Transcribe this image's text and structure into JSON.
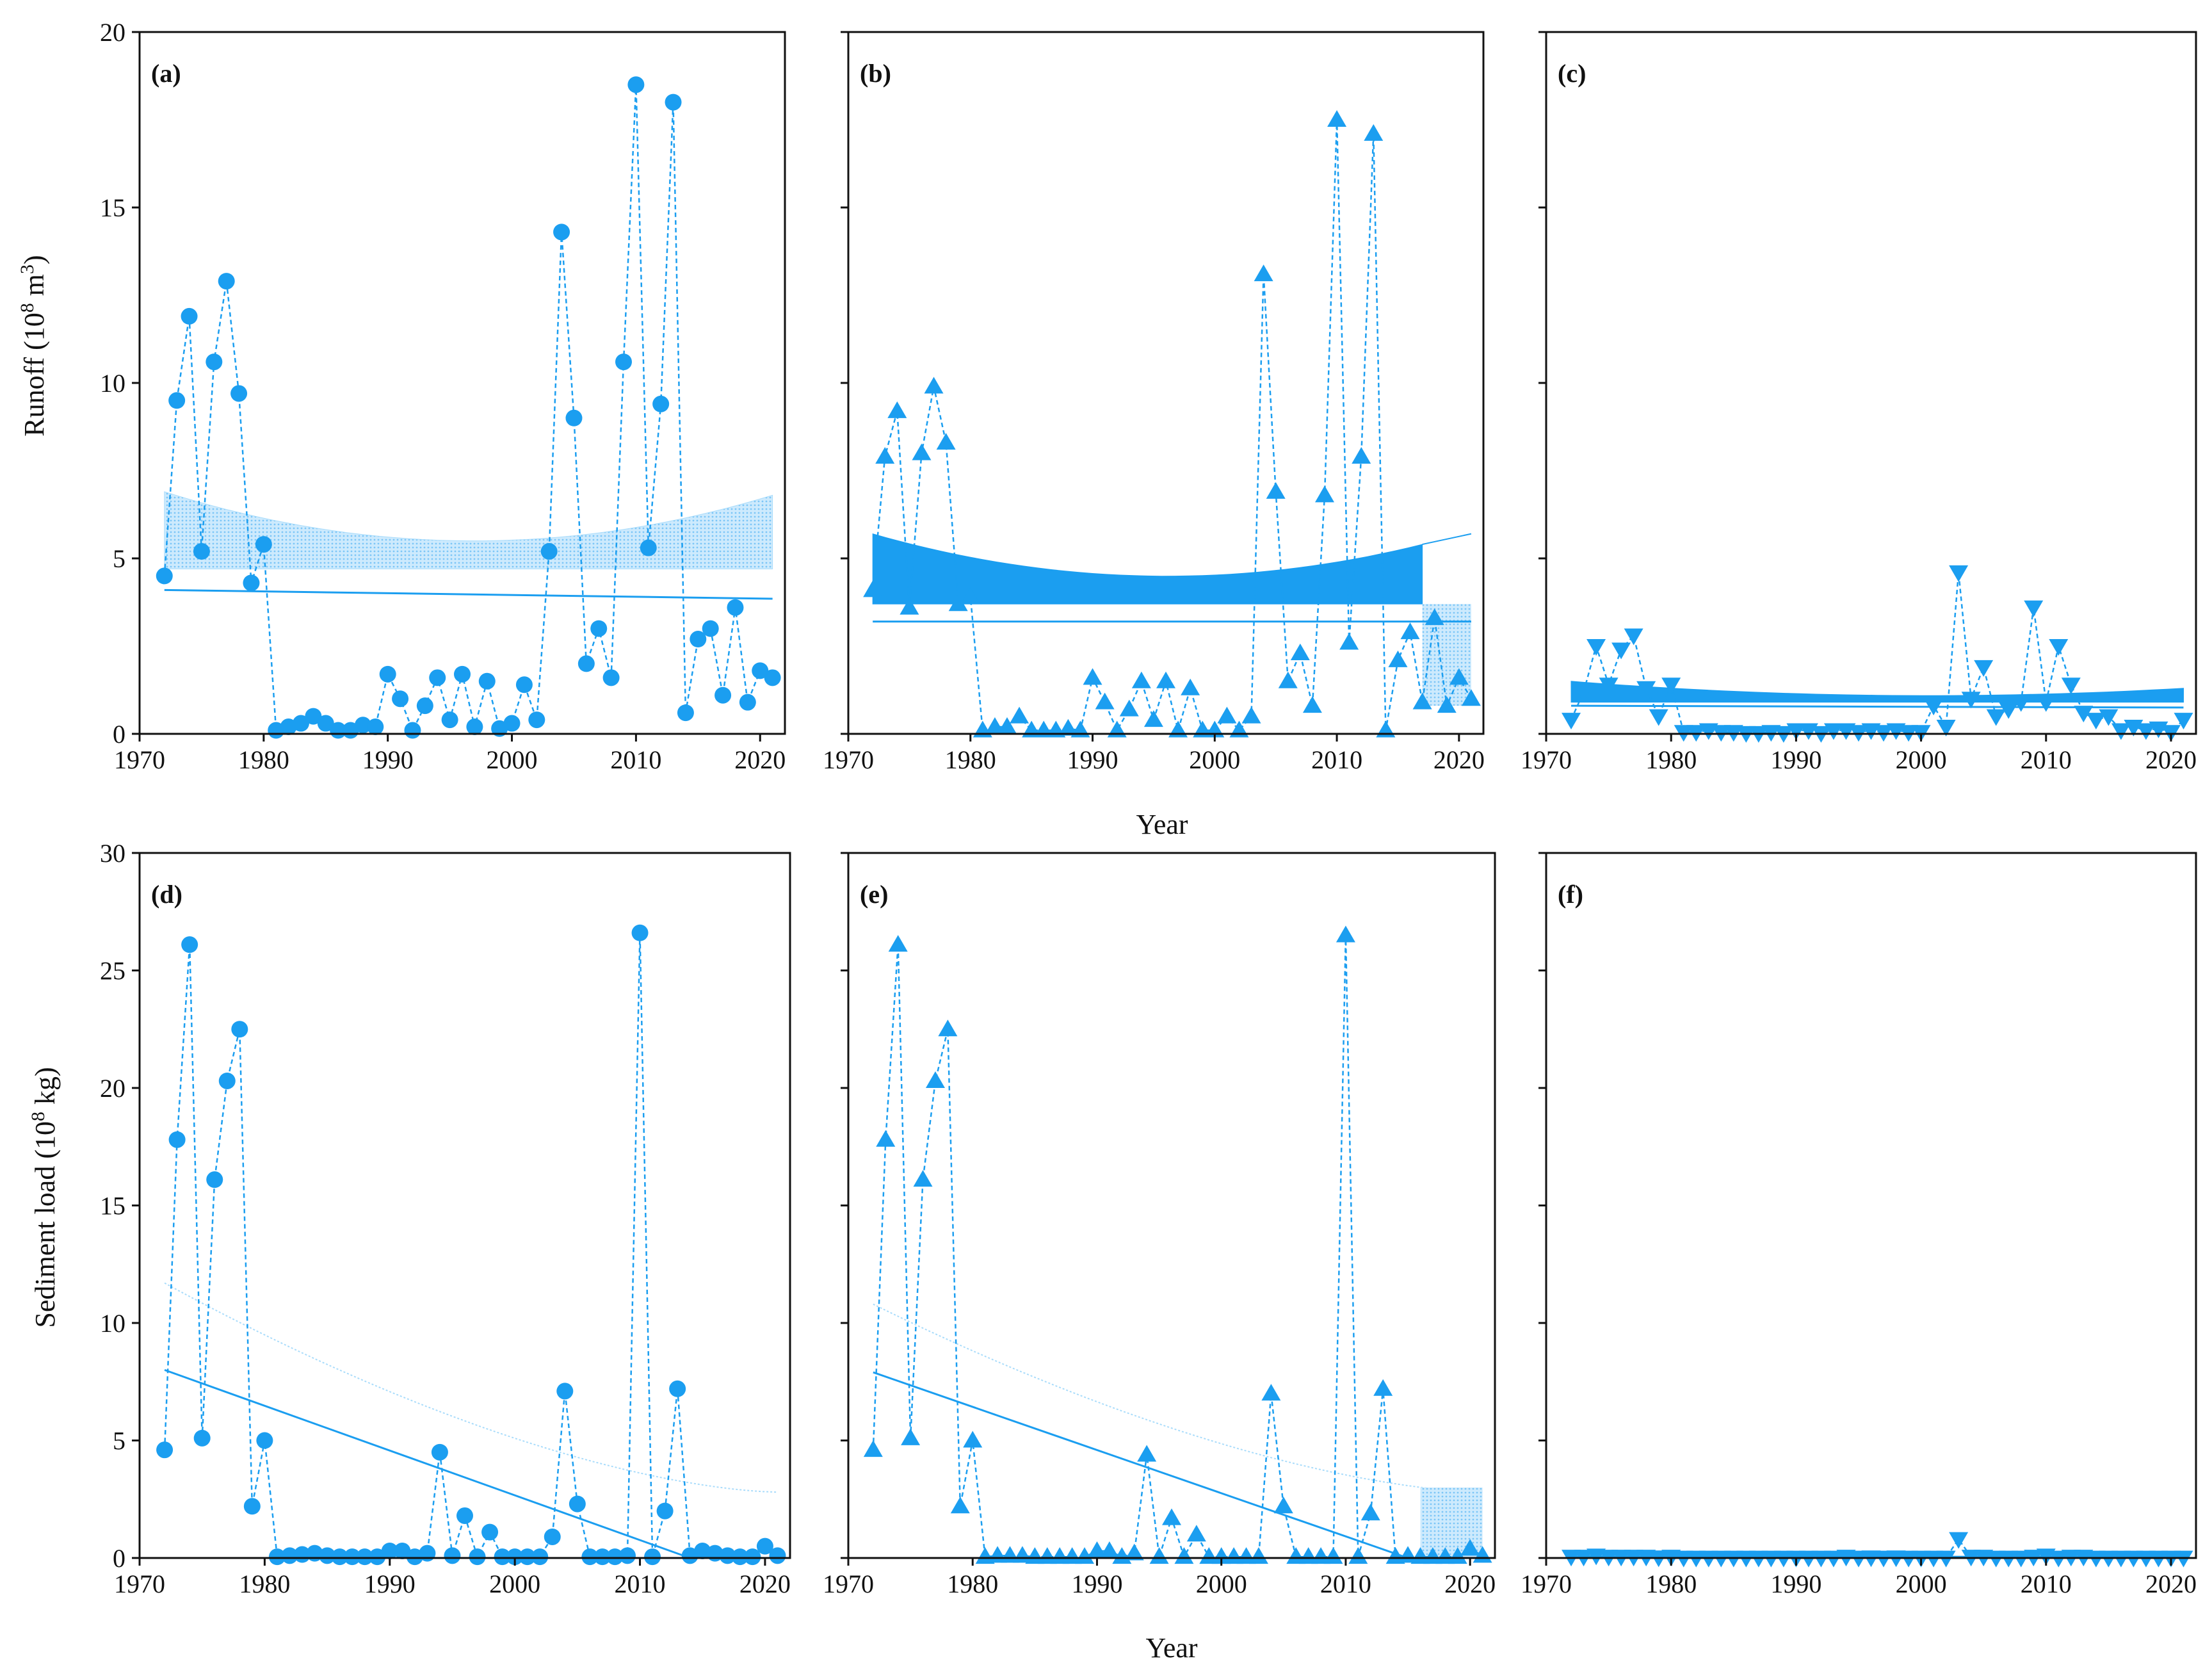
{
  "colors": {
    "series": "#1b9ef0",
    "band": "#a9dcfb",
    "axis": "#111111"
  },
  "shared": {
    "x_label": "Year",
    "x_ticks": [
      1970,
      1980,
      1990,
      2000,
      2010,
      2020
    ],
    "top_y_label": "Runoff (10",
    "top_y_label_exp": "8",
    "top_y_label_unit": " m",
    "top_y_label_unit_exp": "3",
    "top_y_label_close": ")",
    "bottom_y_label": "Sediment load (10",
    "bottom_y_label_exp": "8",
    "bottom_y_label_close": " kg)",
    "top_y_ticks": [
      0,
      5,
      10,
      15,
      20
    ],
    "bottom_y_ticks": [
      0,
      5,
      10,
      15,
      20,
      25,
      30
    ]
  },
  "chart_data": [
    {
      "panel": "(a)",
      "type": "line",
      "marker": "circle",
      "xlim": [
        1970,
        2022
      ],
      "ylim": [
        0,
        20
      ],
      "x": [
        1972,
        1973,
        1974,
        1975,
        1976,
        1977,
        1978,
        1979,
        1980,
        1981,
        1982,
        1983,
        1984,
        1985,
        1986,
        1987,
        1988,
        1989,
        1990,
        1991,
        1992,
        1993,
        1994,
        1995,
        1996,
        1997,
        1998,
        1999,
        2000,
        2001,
        2002,
        2003,
        2004,
        2005,
        2006,
        2007,
        2008,
        2009,
        2010,
        2011,
        2012,
        2013,
        2014,
        2015,
        2016,
        2017,
        2018,
        2019,
        2020,
        2021
      ],
      "values": [
        4.5,
        9.5,
        11.9,
        5.2,
        10.6,
        12.9,
        9.7,
        4.3,
        5.4,
        0.1,
        0.2,
        0.3,
        0.5,
        0.3,
        0.1,
        0.1,
        0.25,
        0.2,
        1.7,
        1.0,
        0.1,
        0.8,
        1.6,
        0.4,
        1.7,
        0.2,
        1.5,
        0.15,
        0.3,
        1.4,
        0.4,
        5.2,
        14.3,
        9.0,
        2.0,
        3.0,
        1.6,
        10.6,
        18.5,
        5.3,
        9.4,
        18.0,
        0.6,
        2.7,
        3.0,
        1.1,
        3.6,
        0.9,
        1.8,
        1.6
      ],
      "trend": {
        "from": [
          1972,
          4.1
        ],
        "to": [
          2021,
          3.85
        ]
      },
      "band": {
        "x_range": [
          1972,
          2021
        ],
        "lower": 4.7,
        "upper": [
          6.9,
          5.5,
          6.8
        ],
        "style": "light"
      }
    },
    {
      "panel": "(b)",
      "type": "line",
      "marker": "triangle-up",
      "xlim": [
        1970,
        2022
      ],
      "ylim": [
        0,
        20
      ],
      "x": [
        1972,
        1973,
        1974,
        1975,
        1976,
        1977,
        1978,
        1979,
        1980,
        1981,
        1982,
        1983,
        1984,
        1985,
        1986,
        1987,
        1988,
        1989,
        1990,
        1991,
        1992,
        1993,
        1994,
        1995,
        1996,
        1997,
        1998,
        1999,
        2000,
        2001,
        2002,
        2003,
        2004,
        2005,
        2006,
        2007,
        2008,
        2009,
        2010,
        2011,
        2012,
        2013,
        2014,
        2015,
        2016,
        2017,
        2018,
        2019,
        2020,
        2021
      ],
      "values": [
        4.1,
        7.9,
        9.2,
        3.6,
        8.0,
        9.9,
        8.3,
        3.7,
        3.9,
        0.1,
        0.2,
        0.2,
        0.5,
        0.1,
        0.1,
        0.1,
        0.15,
        0.1,
        1.6,
        0.9,
        0.1,
        0.7,
        1.5,
        0.4,
        1.5,
        0.1,
        1.3,
        0.1,
        0.1,
        0.5,
        0.1,
        0.5,
        13.1,
        6.9,
        1.5,
        2.3,
        0.8,
        6.8,
        17.5,
        2.6,
        7.9,
        17.1,
        0.1,
        2.1,
        2.9,
        0.9,
        3.3,
        0.8,
        1.6,
        1.0
      ],
      "trend": {
        "from": [
          1972,
          3.2
        ],
        "to": [
          2021,
          3.2
        ]
      },
      "band": {
        "x_range": [
          1972,
          2017
        ],
        "lower": 3.7,
        "upper": [
          5.7,
          4.5,
          5.4
        ],
        "style": "solid",
        "thin_extension_to": [
          2021,
          5.7
        ],
        "light_patch": {
          "x_range": [
            2017,
            2021
          ],
          "lower": 0.8,
          "upper": 3.7
        }
      }
    },
    {
      "panel": "(c)",
      "type": "line",
      "marker": "triangle-down",
      "xlim": [
        1970,
        2022
      ],
      "ylim": [
        0,
        20
      ],
      "x": [
        1972,
        1973,
        1974,
        1975,
        1976,
        1977,
        1978,
        1979,
        1980,
        1981,
        1982,
        1983,
        1984,
        1985,
        1986,
        1987,
        1988,
        1989,
        1990,
        1991,
        1992,
        1993,
        1994,
        1995,
        1996,
        1997,
        1998,
        1999,
        2000,
        2001,
        2002,
        2003,
        2004,
        2005,
        2006,
        2007,
        2008,
        2009,
        2010,
        2011,
        2012,
        2013,
        2014,
        2015,
        2016,
        2017,
        2018,
        2019,
        2020,
        2021
      ],
      "values": [
        0.4,
        1.2,
        2.5,
        1.4,
        2.4,
        2.8,
        1.3,
        0.5,
        1.4,
        0.05,
        0.05,
        0.1,
        0.05,
        0.05,
        0.02,
        0.02,
        0.05,
        0.02,
        0.1,
        0.1,
        0.02,
        0.1,
        0.1,
        0.05,
        0.1,
        0.05,
        0.1,
        0.05,
        0.05,
        0.8,
        0.2,
        4.6,
        1.0,
        1.9,
        0.5,
        0.7,
        0.9,
        3.6,
        0.9,
        2.5,
        1.4,
        0.6,
        0.4,
        0.5,
        0.1,
        0.2,
        0.1,
        0.15,
        0.05,
        0.4
      ],
      "trend": {
        "from": [
          1972,
          0.8
        ],
        "to": [
          2021,
          0.75
        ]
      },
      "band": {
        "x_range": [
          1972,
          2021
        ],
        "lower": 0.9,
        "upper": [
          1.5,
          1.1,
          1.3
        ],
        "style": "solid"
      }
    },
    {
      "panel": "(d)",
      "type": "line",
      "marker": "circle",
      "xlim": [
        1970,
        2022
      ],
      "ylim": [
        0,
        30
      ],
      "x": [
        1972,
        1973,
        1974,
        1975,
        1976,
        1977,
        1978,
        1979,
        1980,
        1981,
        1982,
        1983,
        1984,
        1985,
        1986,
        1987,
        1988,
        1989,
        1990,
        1991,
        1992,
        1993,
        1994,
        1995,
        1996,
        1997,
        1998,
        1999,
        2000,
        2001,
        2002,
        2003,
        2004,
        2005,
        2006,
        2007,
        2008,
        2009,
        2010,
        2011,
        2012,
        2013,
        2014,
        2015,
        2016,
        2017,
        2018,
        2019,
        2020,
        2021
      ],
      "values": [
        4.6,
        17.8,
        26.1,
        5.1,
        16.1,
        20.3,
        22.5,
        2.2,
        5.0,
        0.05,
        0.1,
        0.15,
        0.2,
        0.1,
        0.05,
        0.05,
        0.05,
        0.05,
        0.3,
        0.3,
        0.05,
        0.2,
        4.5,
        0.1,
        1.8,
        0.05,
        1.1,
        0.05,
        0.05,
        0.05,
        0.05,
        0.9,
        7.1,
        2.3,
        0.05,
        0.05,
        0.05,
        0.1,
        26.6,
        0.05,
        2.0,
        7.2,
        0.1,
        0.3,
        0.2,
        0.1,
        0.05,
        0.05,
        0.5,
        0.1
      ],
      "trend": {
        "from": [
          1972,
          8.0
        ],
        "to": [
          2014,
          0.0
        ]
      },
      "band": {
        "x_range": [
          1972,
          2021
        ],
        "upper": [
          11.7,
          2.8
        ],
        "style": "dotted-line"
      }
    },
    {
      "panel": "(e)",
      "type": "line",
      "marker": "triangle-up",
      "xlim": [
        1970,
        2022
      ],
      "ylim": [
        0,
        30
      ],
      "x": [
        1972,
        1973,
        1974,
        1975,
        1976,
        1977,
        1978,
        1979,
        1980,
        1981,
        1982,
        1983,
        1984,
        1985,
        1986,
        1987,
        1988,
        1989,
        1990,
        1991,
        1992,
        1993,
        1994,
        1995,
        1996,
        1997,
        1998,
        1999,
        2000,
        2001,
        2002,
        2003,
        2004,
        2005,
        2006,
        2007,
        2008,
        2009,
        2010,
        2011,
        2012,
        2013,
        2014,
        2015,
        2016,
        2017,
        2018,
        2019,
        2020,
        2021
      ],
      "values": [
        4.6,
        17.8,
        26.1,
        5.1,
        16.1,
        20.3,
        22.5,
        2.2,
        5.0,
        0.05,
        0.1,
        0.1,
        0.1,
        0.05,
        0.05,
        0.05,
        0.05,
        0.05,
        0.3,
        0.3,
        0.05,
        0.2,
        4.4,
        0.05,
        1.7,
        0.05,
        1.0,
        0.05,
        0.05,
        0.05,
        0.05,
        0.05,
        7.0,
        2.2,
        0.05,
        0.05,
        0.05,
        0.05,
        26.5,
        0.05,
        1.9,
        7.2,
        0.05,
        0.1,
        0.05,
        0.05,
        0.05,
        0.05,
        0.4,
        0.1
      ],
      "trend": {
        "from": [
          1972,
          7.9
        ],
        "to": [
          2015,
          0.0
        ]
      },
      "band": {
        "x_range": [
          1972,
          2021
        ],
        "upper": [
          10.8,
          2.8
        ],
        "style": "dotted-line",
        "light_patch": {
          "x_range": [
            2016,
            2021
          ],
          "lower": 0,
          "upper": 3.0
        }
      }
    },
    {
      "panel": "(f)",
      "type": "line",
      "marker": "triangle-down",
      "xlim": [
        1970,
        2022
      ],
      "ylim": [
        0,
        30
      ],
      "x": [
        1972,
        1973,
        1974,
        1975,
        1976,
        1977,
        1978,
        1979,
        1980,
        1981,
        1982,
        1983,
        1984,
        1985,
        1986,
        1987,
        1988,
        1989,
        1990,
        1991,
        1992,
        1993,
        1994,
        1995,
        1996,
        1997,
        1998,
        1999,
        2000,
        2001,
        2002,
        2003,
        2004,
        2005,
        2006,
        2007,
        2008,
        2009,
        2010,
        2011,
        2012,
        2013,
        2014,
        2015,
        2016,
        2017,
        2018,
        2019,
        2020,
        2021
      ],
      "values": [
        0.05,
        0.05,
        0.1,
        0.05,
        0.05,
        0.05,
        0.05,
        0.02,
        0.05,
        0.01,
        0.01,
        0.01,
        0.01,
        0.01,
        0.01,
        0.01,
        0.01,
        0.01,
        0.01,
        0.01,
        0.01,
        0.01,
        0.05,
        0.01,
        0.02,
        0.01,
        0.02,
        0.01,
        0.01,
        0.01,
        0.01,
        0.8,
        0.05,
        0.05,
        0.01,
        0.01,
        0.01,
        0.05,
        0.1,
        0.01,
        0.05,
        0.05,
        0.01,
        0.01,
        0.01,
        0.01,
        0.01,
        0.01,
        0.01,
        0.01
      ],
      "trend": {
        "from": [
          1972,
          0.05
        ],
        "to": [
          2021,
          0.05
        ]
      },
      "band": null
    }
  ]
}
